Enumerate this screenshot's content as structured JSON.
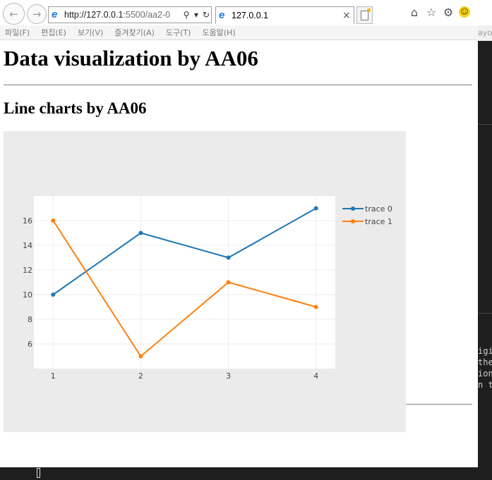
{
  "browser": {
    "address": {
      "url_main": "http://127.0.0.1",
      "url_rest": ":5500/aa2-0"
    },
    "tab": {
      "title": "127.0.0.1",
      "close": "×"
    },
    "menu": [
      "파일(F)",
      "편집(E)",
      "보기(V)",
      "즐겨찾기(A)",
      "도구(T)",
      "도움말(H)"
    ],
    "icons": [
      "back-arrow-icon",
      "forward-arrow-icon",
      "ie-logo-icon",
      "search-icon",
      "dropdown-icon",
      "refresh-icon",
      "new-tab-icon",
      "home-icon",
      "favorites-star-icon",
      "settings-gear-icon",
      "smiley-feedback-icon"
    ]
  },
  "background_app": {
    "header_fragment": "ayou",
    "code_lines": [
      "igi",
      "the",
      "ion",
      "n t"
    ]
  },
  "page": {
    "title": "Data visualization by AA06",
    "subtitle": "Line charts by AA06"
  },
  "chart_data": {
    "type": "line",
    "x": [
      1,
      2,
      3,
      4
    ],
    "series": [
      {
        "name": "trace 0",
        "values": [
          10,
          15,
          13,
          17
        ],
        "color": "#1f77b4"
      },
      {
        "name": "trace 1",
        "values": [
          16,
          5,
          11,
          9
        ],
        "color": "#ff7f0e"
      }
    ],
    "x_ticks": [
      1,
      2,
      3,
      4
    ],
    "y_ticks": [
      6,
      8,
      10,
      12,
      14,
      16
    ],
    "xlim": [
      0.78,
      4.22
    ],
    "ylim": [
      4.0,
      18.0
    ],
    "grid": true,
    "legend_position": "top-right",
    "plot_background": "#ffffff",
    "paper_background": "#ebebeb"
  }
}
